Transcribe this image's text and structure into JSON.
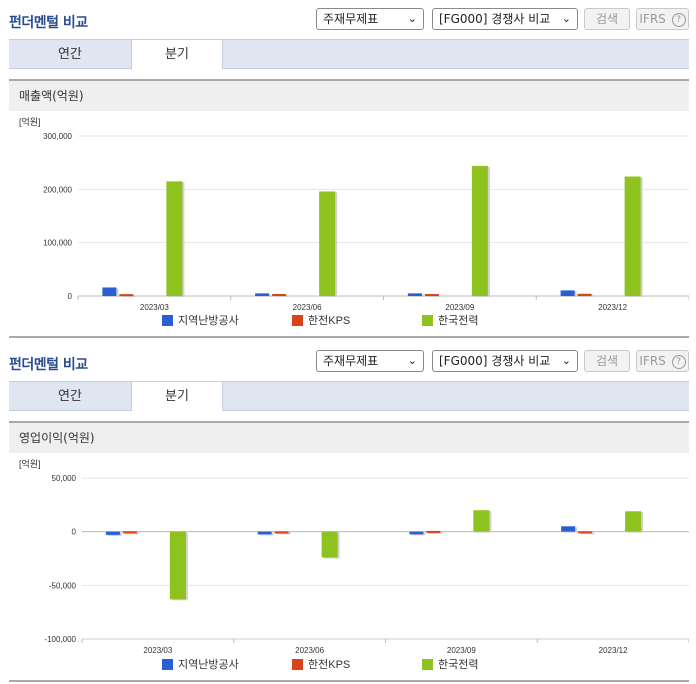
{
  "panels": [
    {
      "title": "펀더멘털 비교",
      "select1": "주재무제표",
      "select2": "[FG000] 경쟁사 비교",
      "search_label": "검색",
      "ifrs_label": "IFRS",
      "tabs": [
        "연간",
        "분기"
      ],
      "active_tab": "분기",
      "section_title": "매출액(억원)",
      "chart_data": {
        "type": "bar",
        "unit_label": "[억원]",
        "categories": [
          "2023/03",
          "2023/06",
          "2023/09",
          "2023/12"
        ],
        "ylim": [
          0,
          300000
        ],
        "yticks": [
          0,
          100000,
          200000,
          300000
        ],
        "ytick_labels": [
          "0",
          "100,000",
          "200,000",
          "300,000"
        ],
        "grid": true,
        "legend_position": "bottom",
        "series": [
          {
            "name": "지역난방공사",
            "color": "#2a5fd3",
            "values": [
              16000,
              5000,
              5000,
              10500
            ]
          },
          {
            "name": "한전KPS",
            "color": "#d9431a",
            "values": [
              3500,
              3800,
              3700,
              4200
            ]
          },
          {
            "name": "한국전력",
            "color": "#8dc21f",
            "values": [
              215000,
              196000,
              244000,
              224000
            ]
          }
        ]
      }
    },
    {
      "title": "펀더멘털 비교",
      "select1": "주재무제표",
      "select2": "[FG000] 경쟁사 비교",
      "search_label": "검색",
      "ifrs_label": "IFRS",
      "tabs": [
        "연간",
        "분기"
      ],
      "active_tab": "분기",
      "section_title": "영업이익(억원)",
      "chart_data": {
        "type": "bar",
        "unit_label": "[억원]",
        "categories": [
          "2023/03",
          "2023/06",
          "2023/09",
          "2023/12"
        ],
        "ylim": [
          -100000,
          50000
        ],
        "yticks": [
          -100000,
          -50000,
          0,
          50000
        ],
        "ytick_labels": [
          "-100,000",
          "-50,000",
          "0",
          "50,000"
        ],
        "grid": true,
        "legend_position": "bottom",
        "series": [
          {
            "name": "지역난방공사",
            "color": "#2a5fd3",
            "values": [
              -3000,
              -2500,
              -2500,
              5000
            ]
          },
          {
            "name": "한전KPS",
            "color": "#d9431a",
            "values": [
              300,
              200,
              700,
              300
            ]
          },
          {
            "name": "한국전력",
            "color": "#8dc21f",
            "values": [
              -63000,
              -24000,
              20000,
              19000
            ]
          }
        ]
      }
    }
  ]
}
